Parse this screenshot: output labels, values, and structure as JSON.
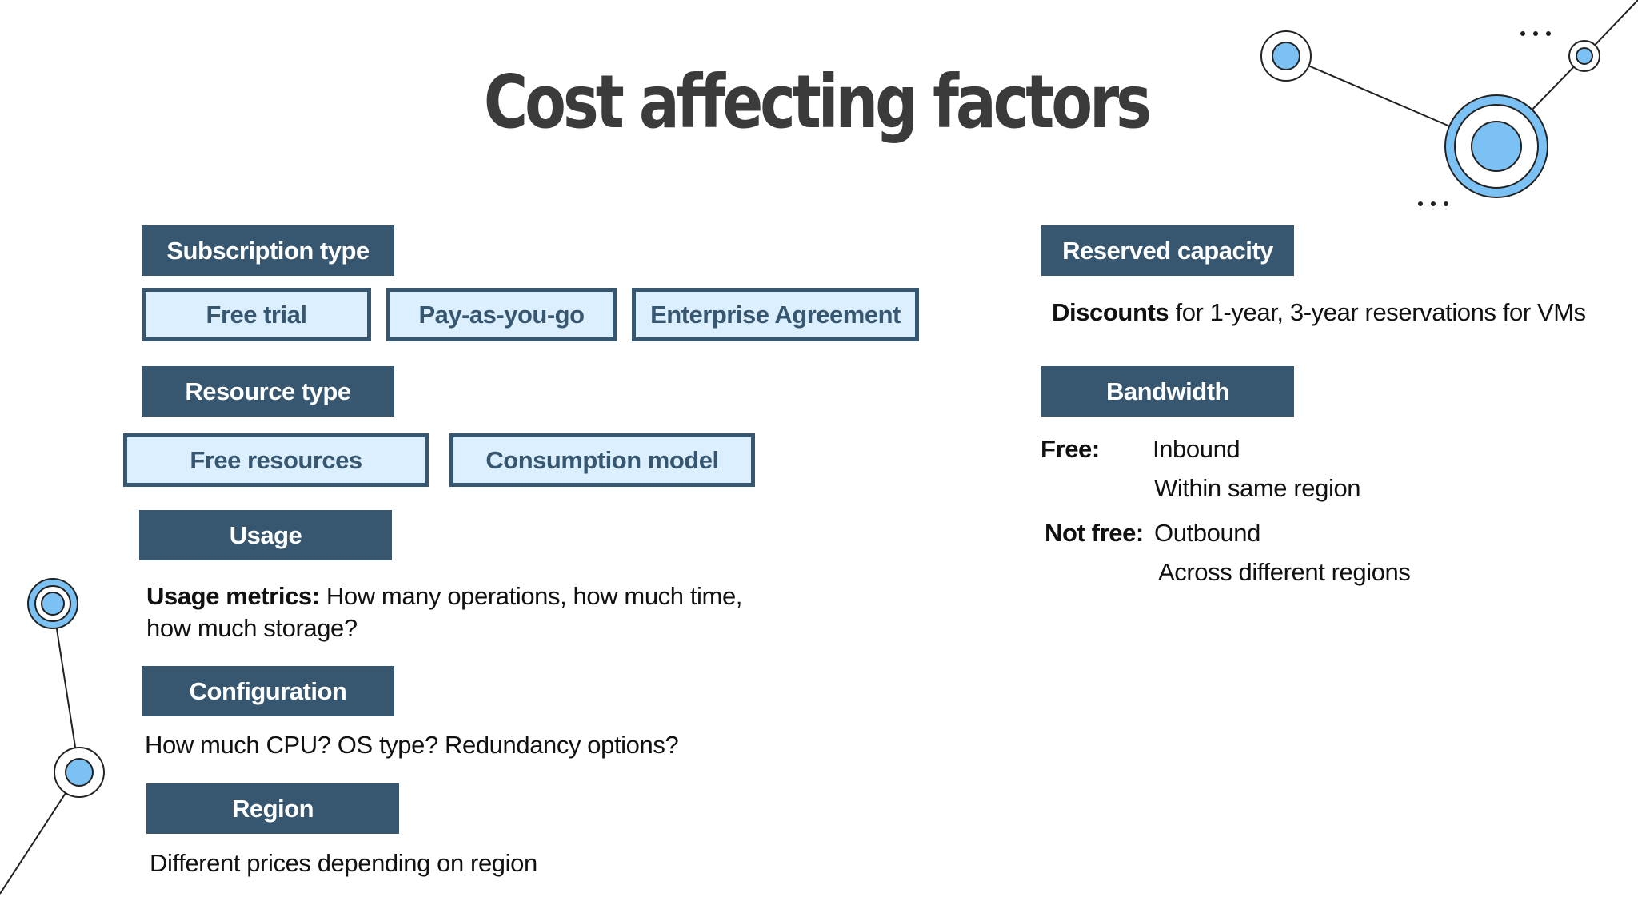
{
  "title": "Cost affecting factors",
  "left": {
    "subscription": {
      "header": "Subscription type",
      "options": [
        "Free trial",
        "Pay-as-you-go",
        "Enterprise Agreement"
      ]
    },
    "resource": {
      "header": "Resource type",
      "options": [
        "Free resources",
        "Consumption model"
      ]
    },
    "usage": {
      "header": "Usage",
      "metrics_label": "Usage metrics:",
      "metrics_text": " How many operations, how much time,",
      "metrics_text_2": "how much storage?"
    },
    "configuration": {
      "header": "Configuration",
      "text": "How much CPU? OS type? Redundancy options?"
    },
    "region": {
      "header": "Region",
      "text": "Different prices depending on region"
    }
  },
  "right": {
    "reserved": {
      "header": "Reserved capacity",
      "discounts_label": "Discounts",
      "discounts_text": " for 1-year, 3-year reservations for VMs"
    },
    "bandwidth": {
      "header": "Bandwidth",
      "free_label": "Free:",
      "free_items": [
        "Inbound",
        "Within same region"
      ],
      "notfree_label": "Not free:",
      "notfree_items": [
        "Outbound",
        "Across different regions"
      ]
    }
  },
  "colors": {
    "header_bg": "#375771",
    "option_bg": "#dcefff",
    "accent_blue": "#7cc1f4",
    "title_text": "#3b3b3b"
  },
  "icons": [
    "network-node-icon",
    "ellipsis-icon"
  ]
}
